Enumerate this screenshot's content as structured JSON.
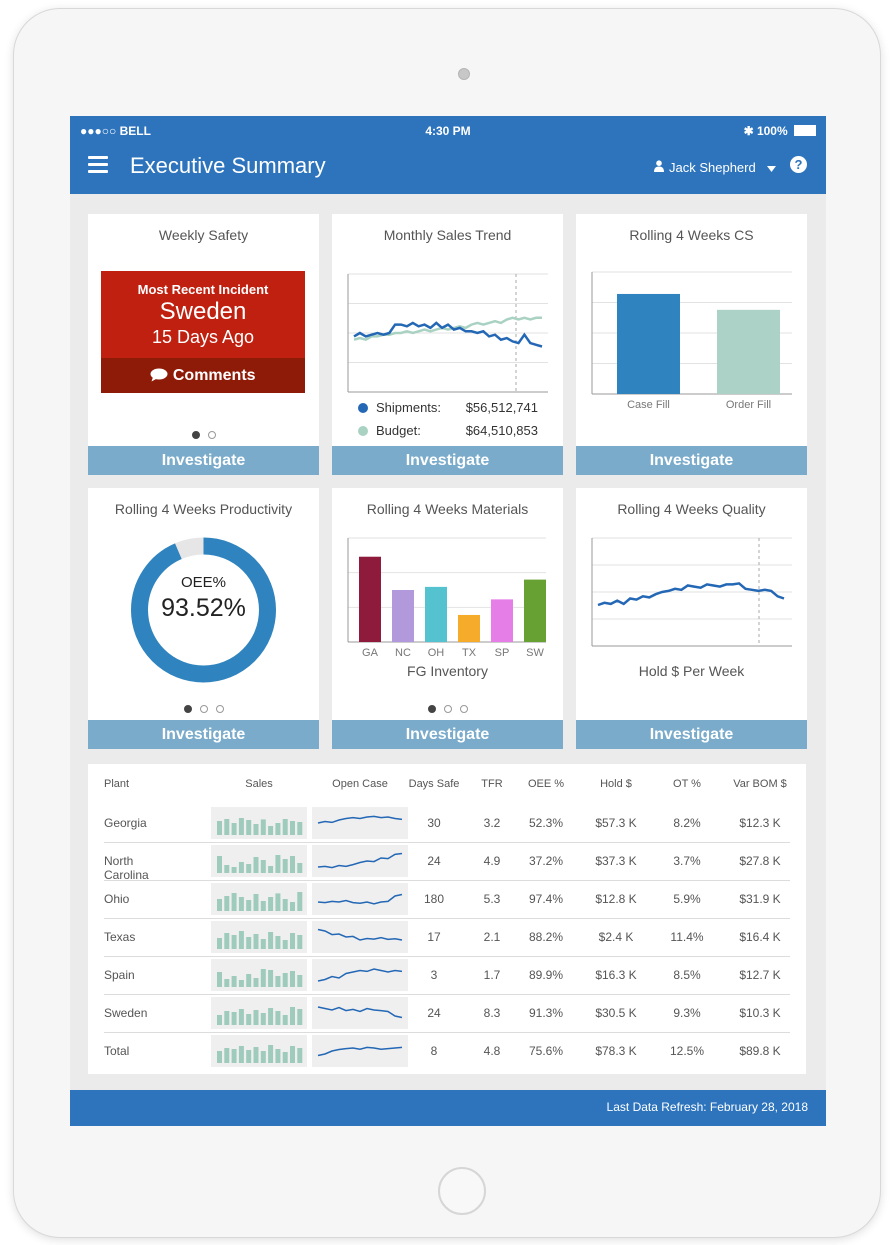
{
  "status": {
    "carrier": "●●●○○ BELL",
    "time": "4:30 PM",
    "battery": "100%"
  },
  "header": {
    "title": "Executive Summary",
    "user": "Jack Shepherd"
  },
  "cards": {
    "safety": {
      "title": "Weekly Safety",
      "incident_label": "Most Recent Incident",
      "location": "Sweden",
      "ago": "15 Days Ago",
      "comments": "Comments"
    },
    "sales_trend": {
      "title": "Monthly Sales Trend",
      "shipments_label": "Shipments:",
      "shipments_value": "$56,512,741",
      "budget_label": "Budget:",
      "budget_value": "$64,510,853"
    },
    "cs": {
      "title": "Rolling 4 Weeks CS"
    },
    "productivity": {
      "title": "Rolling 4 Weeks Productivity",
      "metric": "OEE%",
      "value": "93.52%"
    },
    "materials": {
      "title": "Rolling 4 Weeks Materials"
    },
    "quality": {
      "title": "Rolling 4 Weeks Quality"
    },
    "investigate_label": "Investigate"
  },
  "chart_data": [
    {
      "type": "line",
      "title": "Monthly Sales Trend",
      "series": [
        {
          "name": "Shipments",
          "color": "#2367b5",
          "values": [
            53,
            55,
            53,
            54,
            55,
            54,
            55,
            60,
            60,
            59,
            61,
            59,
            60,
            58,
            61,
            58,
            60,
            57,
            58,
            56,
            56,
            55,
            56,
            53,
            54,
            51,
            52,
            50,
            49,
            54,
            49,
            48,
            47
          ]
        },
        {
          "name": "Budget",
          "color": "#a9d2c3",
          "values": [
            51,
            52,
            51,
            53,
            53,
            54,
            54,
            55,
            55,
            56,
            55,
            56,
            57,
            56,
            57,
            58,
            57,
            58,
            59,
            58,
            60,
            61,
            60,
            61,
            62,
            61,
            63,
            64,
            63,
            64,
            63,
            64,
            64
          ]
        }
      ]
    },
    {
      "type": "bar",
      "title": "Rolling 4 Weeks CS",
      "categories": [
        "Case Fill",
        "Order Fill"
      ],
      "values": [
        82,
        69
      ],
      "colors": [
        "#2f84bf",
        "#acd2c8"
      ]
    },
    {
      "type": "pie",
      "title": "Rolling 4 Weeks Productivity",
      "values": [
        93.52,
        6.48
      ],
      "colors": [
        "#2f84bf",
        "#e6e6e6"
      ]
    },
    {
      "type": "bar",
      "title": "Rolling 4 Weeks Materials",
      "xlabel": "FG Inventory",
      "categories": [
        "GA",
        "NC",
        "OH",
        "TX",
        "SP",
        "SW"
      ],
      "values": [
        82,
        50,
        53,
        26,
        41,
        60
      ],
      "colors": [
        "#8e1a3c",
        "#b199db",
        "#55c2cf",
        "#f7ab2b",
        "#e67ee8",
        "#67a134"
      ]
    },
    {
      "type": "line",
      "title": "Rolling 4 Weeks Quality",
      "xlabel": "Hold $ Per Week",
      "series": [
        {
          "color": "#2367b5",
          "values": [
            38,
            40,
            39,
            42,
            39,
            44,
            43,
            46,
            45,
            48,
            50,
            51,
            53,
            52,
            56,
            55,
            54,
            57,
            56,
            55,
            57,
            57,
            58,
            53,
            52,
            51,
            52,
            51,
            46,
            44
          ]
        }
      ]
    }
  ],
  "table": {
    "headers": [
      "Plant",
      "Sales",
      "Open Case",
      "Days Safe",
      "TFR",
      "OEE %",
      "Hold $",
      "OT %",
      "Var BOM $"
    ],
    "rows": [
      {
        "plant": "Georgia",
        "days_safe": "30",
        "tfr": "3.2",
        "oee": "52.3%",
        "hold": "$57.3 K",
        "ot": "8.2%",
        "var_bom": "$12.3 K",
        "sales_bars": [
          70,
          80,
          60,
          85,
          75,
          55,
          78,
          45,
          60,
          80,
          70,
          65
        ],
        "open_case": [
          40,
          45,
          42,
          50,
          55,
          58,
          55,
          60,
          62,
          58,
          60,
          55,
          52
        ]
      },
      {
        "plant": "North Carolina",
        "days_safe": "24",
        "tfr": "4.9",
        "oee": "37.2%",
        "hold": "$37.3 K",
        "ot": "3.7%",
        "var_bom": "$27.8 K",
        "sales_bars": [
          85,
          40,
          30,
          55,
          45,
          80,
          65,
          35,
          90,
          70,
          85,
          50
        ],
        "open_case": [
          20,
          22,
          18,
          25,
          22,
          28,
          35,
          40,
          38,
          50,
          48,
          62,
          65
        ]
      },
      {
        "plant": "Ohio",
        "days_safe": "180",
        "tfr": "5.3",
        "oee": "97.4%",
        "hold": "$12.8 K",
        "ot": "5.9%",
        "var_bom": "$31.9 K",
        "sales_bars": [
          60,
          75,
          90,
          70,
          55,
          85,
          50,
          70,
          88,
          60,
          45,
          95
        ],
        "open_case": [
          30,
          28,
          32,
          30,
          35,
          28,
          26,
          30,
          24,
          30,
          32,
          50,
          55
        ]
      },
      {
        "plant": "Texas",
        "days_safe": "17",
        "tfr": "2.1",
        "oee": "88.2%",
        "hold": "$2.4 K",
        "ot": "11.4%",
        "var_bom": "$16.4 K",
        "sales_bars": [
          55,
          80,
          70,
          90,
          60,
          75,
          50,
          85,
          65,
          45,
          80,
          70
        ],
        "open_case": [
          65,
          60,
          48,
          50,
          40,
          42,
          30,
          35,
          33,
          38,
          32,
          34,
          30
        ]
      },
      {
        "plant": "Spain",
        "days_safe": "3",
        "tfr": "1.7",
        "oee": "89.9%",
        "hold": "$16.3 K",
        "ot": "8.5%",
        "var_bom": "$12.7 K",
        "sales_bars": [
          75,
          40,
          55,
          35,
          65,
          45,
          90,
          85,
          55,
          70,
          80,
          60
        ],
        "open_case": [
          20,
          25,
          35,
          30,
          45,
          50,
          55,
          52,
          60,
          55,
          50,
          55,
          52
        ]
      },
      {
        "plant": "Sweden",
        "days_safe": "24",
        "tfr": "8.3",
        "oee": "91.3%",
        "hold": "$30.5 K",
        "ot": "9.3%",
        "var_bom": "$10.3 K",
        "sales_bars": [
          50,
          70,
          65,
          80,
          55,
          75,
          60,
          85,
          70,
          50,
          90,
          80
        ],
        "open_case": [
          60,
          55,
          50,
          58,
          48,
          52,
          45,
          55,
          50,
          48,
          45,
          30,
          25
        ]
      },
      {
        "plant": "Total",
        "days_safe": "8",
        "tfr": "4.8",
        "oee": "75.6%",
        "hold": "$78.3 K",
        "ot": "12.5%",
        "var_bom": "$89.8 K",
        "sales_bars": [
          60,
          75,
          70,
          85,
          65,
          80,
          60,
          90,
          70,
          55,
          85,
          75
        ],
        "open_case": [
          25,
          30,
          40,
          45,
          48,
          50,
          46,
          52,
          50,
          46,
          48,
          50,
          52
        ]
      }
    ]
  },
  "footer": {
    "refresh": "Last Data Refresh: February 28, 2018"
  }
}
